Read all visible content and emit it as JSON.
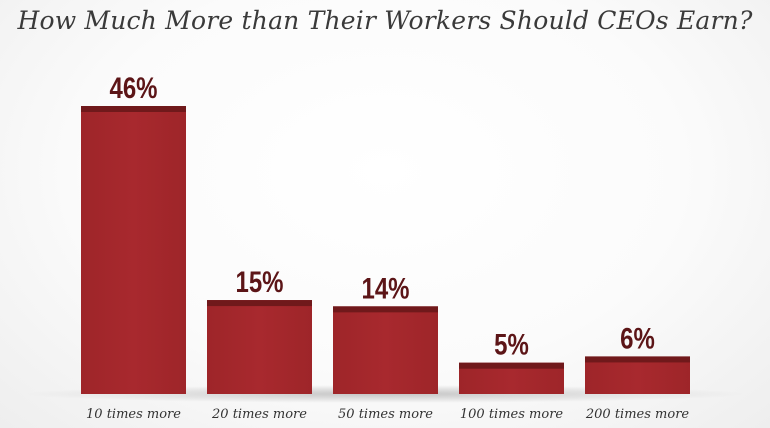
{
  "chart_data": {
    "type": "bar",
    "title": "How Much More than Their Workers Should CEOs Earn?",
    "categories": [
      "10 times more",
      "20 times more",
      "50 times more",
      "100 times more",
      "200 times more"
    ],
    "values": [
      46,
      15,
      14,
      5,
      6
    ],
    "value_labels": [
      "46%",
      "15%",
      "14%",
      "5%",
      "6%"
    ],
    "xlabel": "",
    "ylabel": "",
    "ylim": [
      0,
      50
    ],
    "grid": false,
    "legend": "none",
    "colors": {
      "bar": "#a3282c",
      "bar_cap": "#70191b",
      "value_label": "#5c1517",
      "category_label": "#333333",
      "title": "#3a3a3a"
    }
  }
}
